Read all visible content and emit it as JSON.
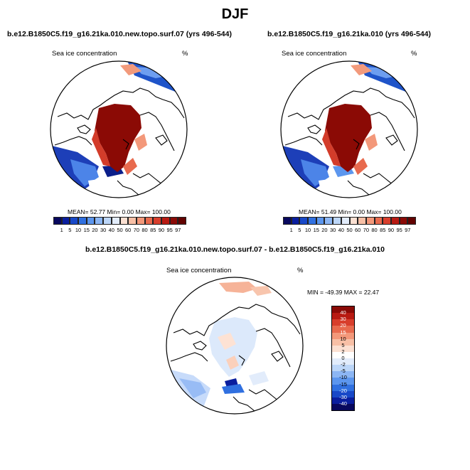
{
  "page": {
    "title": "DJF"
  },
  "panels": [
    {
      "title": "b.e12.B1850C5.f19_g16.21ka.010.new.topo.surf.07 (yrs 496-544)",
      "variable": "Sea ice concentration",
      "units": "%",
      "stats": "MEAN=  52.77  Min=   0.00  Max= 100.00"
    },
    {
      "title": "b.e12.B1850C5.f19_g16.21ka.010 (yrs 496-544)",
      "variable": "Sea ice concentration",
      "units": "%",
      "stats": "MEAN=  51.49  Min=   0.00  Max= 100.00"
    }
  ],
  "diff_panel": {
    "title": "b.e12.B1850C5.f19_g16.21ka.010.new.topo.surf.07 - b.e12.B1850C5.f19_g16.21ka.010",
    "variable": "Sea ice concentration",
    "units": "%",
    "stats": "MIN =  -49.39 MAX =  22.47"
  },
  "legend_top": {
    "labels": [
      "1",
      "5",
      "10",
      "15",
      "20",
      "30",
      "40",
      "50",
      "60",
      "70",
      "80",
      "85",
      "90",
      "95",
      "97"
    ],
    "colors": [
      "#08085e",
      "#0a1e9e",
      "#1848c8",
      "#3070e0",
      "#5c96ee",
      "#8cb6f4",
      "#bcd6f8",
      "#e2ecfb",
      "#fbe0d2",
      "#f8c0a6",
      "#f3987a",
      "#e86a4e",
      "#d83e2c",
      "#b81a12",
      "#8a0a06",
      "#620200"
    ]
  },
  "legend_diff": {
    "labels": [
      "40",
      "30",
      "20",
      "15",
      "10",
      "5",
      "2",
      "0",
      "-2",
      "-5",
      "-10",
      "-15",
      "-20",
      "-30",
      "-40"
    ],
    "colors": [
      "#8a0a06",
      "#b81a12",
      "#d83e2c",
      "#e86a4e",
      "#f3987a",
      "#f8c0a6",
      "#fbe0d2",
      "#ffffff",
      "#e2ecfb",
      "#bcd6f8",
      "#8cb6f4",
      "#5c96ee",
      "#3070e0",
      "#1848c8",
      "#0a1e9e",
      "#08085e"
    ]
  },
  "icons": {
    "coastline": "coastline-lines",
    "polar-map": "polar-stereographic-map"
  }
}
